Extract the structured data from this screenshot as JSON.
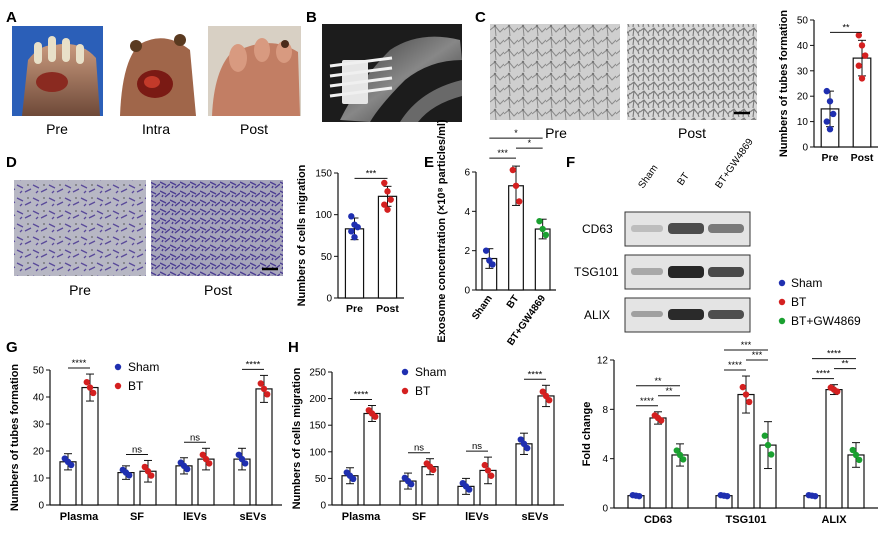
{
  "colors": {
    "sham": "#1f2fb0",
    "bt": "#d42020",
    "gw": "#1aa030",
    "black": "#111111"
  },
  "panels": {
    "A": {
      "letter": "A",
      "labels": [
        "Pre",
        "Intra",
        "Post"
      ]
    },
    "B": {
      "letter": "B"
    },
    "C": {
      "letter": "C",
      "labels": [
        "Pre",
        "Post"
      ]
    },
    "D": {
      "letter": "D",
      "labels": [
        "Pre",
        "Post"
      ]
    },
    "E": {
      "letter": "E"
    },
    "F": {
      "letter": "F",
      "lanes": [
        "Sham",
        "BT",
        "BT+GW4869"
      ],
      "blots": [
        "CD63",
        "TSG101",
        "ALIX"
      ]
    },
    "G": {
      "letter": "G"
    },
    "H": {
      "letter": "H"
    }
  },
  "legend_F": {
    "items": [
      "Sham",
      "BT",
      "BT+GW4869"
    ]
  },
  "chart_data": [
    {
      "id": "C",
      "type": "bar",
      "ylabel": "Numbers of tubes formation",
      "categories": [
        "Pre",
        "Post"
      ],
      "values": [
        15,
        35
      ],
      "errors": [
        7,
        7
      ],
      "ylim": [
        0,
        50
      ],
      "yticks": [
        0,
        10,
        20,
        30,
        40,
        50
      ],
      "points": [
        [
          22,
          18,
          13,
          10,
          7
        ],
        [
          44,
          40,
          36,
          32,
          27
        ]
      ],
      "sig": "**"
    },
    {
      "id": "D",
      "type": "bar",
      "ylabel": "Numbers of cells migration",
      "categories": [
        "Pre",
        "Post"
      ],
      "values": [
        83,
        122
      ],
      "errors": [
        13,
        12
      ],
      "ylim": [
        0,
        150
      ],
      "yticks": [
        0,
        50,
        100,
        150
      ],
      "points": [
        [
          98,
          88,
          85,
          80,
          73
        ],
        [
          138,
          128,
          118,
          112,
          106
        ]
      ],
      "sig": "***"
    },
    {
      "id": "E",
      "type": "bar",
      "ylabel": "Exosome concentration (×10⁸ particles/ml)",
      "categories": [
        "Sham",
        "BT",
        "BT+GW4869"
      ],
      "values": [
        1.6,
        5.3,
        3.1
      ],
      "errors": [
        0.5,
        1.0,
        0.5
      ],
      "ylim": [
        0,
        6
      ],
      "yticks": [
        0,
        2,
        4,
        6
      ],
      "points": [
        [
          2.0,
          1.5,
          1.3
        ],
        [
          6.1,
          5.3,
          4.5
        ],
        [
          3.5,
          3.1,
          2.8
        ]
      ],
      "sig": [
        {
          "a": 0,
          "b": 1,
          "t": "***"
        },
        {
          "a": 1,
          "b": 2,
          "t": "*"
        },
        {
          "a": 0,
          "b": 2,
          "t": "*"
        }
      ]
    },
    {
      "id": "F",
      "type": "bar",
      "ylabel": "Fold change",
      "groups": [
        "CD63",
        "TSG101",
        "ALIX"
      ],
      "series": [
        "Sham",
        "BT",
        "BT+GW4869"
      ],
      "values": [
        [
          1.0,
          7.3,
          4.3
        ],
        [
          1.0,
          9.2,
          5.1
        ],
        [
          1.0,
          9.6,
          4.3
        ]
      ],
      "errors": [
        [
          0.1,
          0.5,
          0.9
        ],
        [
          0.1,
          1.5,
          1.9
        ],
        [
          0.1,
          0.4,
          1.0
        ]
      ],
      "ylim": [
        0,
        12
      ],
      "yticks": [
        0,
        4,
        8,
        12
      ],
      "sig": [
        [
          {
            "a": 0,
            "b": 1,
            "t": "****"
          },
          {
            "a": 1,
            "b": 2,
            "t": "**"
          },
          {
            "a": 0,
            "b": 2,
            "t": "**"
          }
        ],
        [
          {
            "a": 0,
            "b": 1,
            "t": "****"
          },
          {
            "a": 1,
            "b": 2,
            "t": "***"
          },
          {
            "a": 0,
            "b": 2,
            "t": "***"
          }
        ],
        [
          {
            "a": 0,
            "b": 1,
            "t": "****"
          },
          {
            "a": 1,
            "b": 2,
            "t": "**"
          },
          {
            "a": 0,
            "b": 2,
            "t": "****"
          }
        ]
      ]
    },
    {
      "id": "G",
      "type": "bar",
      "ylabel": "Numbers of tubes formation",
      "groups": [
        "Plasma",
        "SF",
        "lEVs",
        "sEVs"
      ],
      "series": [
        "Sham",
        "BT"
      ],
      "values": [
        [
          16,
          43.5
        ],
        [
          12,
          12.5
        ],
        [
          14.5,
          17
        ],
        [
          17,
          43
        ]
      ],
      "errors": [
        [
          3,
          5
        ],
        [
          2.5,
          4
        ],
        [
          3,
          4
        ],
        [
          4,
          5
        ]
      ],
      "ylim": [
        0,
        50
      ],
      "yticks": [
        0,
        10,
        20,
        30,
        40,
        50
      ],
      "sig": [
        "****",
        "ns",
        "ns",
        "****"
      ]
    },
    {
      "id": "H",
      "type": "bar",
      "ylabel": "Numbers of cells migration",
      "groups": [
        "Plasma",
        "SF",
        "lEVs",
        "sEVs"
      ],
      "series": [
        "Sham",
        "BT"
      ],
      "values": [
        [
          55,
          172
        ],
        [
          45,
          72
        ],
        [
          35,
          65
        ],
        [
          115,
          205
        ]
      ],
      "errors": [
        [
          15,
          15
        ],
        [
          15,
          15
        ],
        [
          15,
          25
        ],
        [
          20,
          20
        ]
      ],
      "ylim": [
        0,
        250
      ],
      "yticks": [
        0,
        50,
        100,
        150,
        200,
        250
      ],
      "sig": [
        "****",
        "ns",
        "ns",
        "****"
      ]
    }
  ]
}
